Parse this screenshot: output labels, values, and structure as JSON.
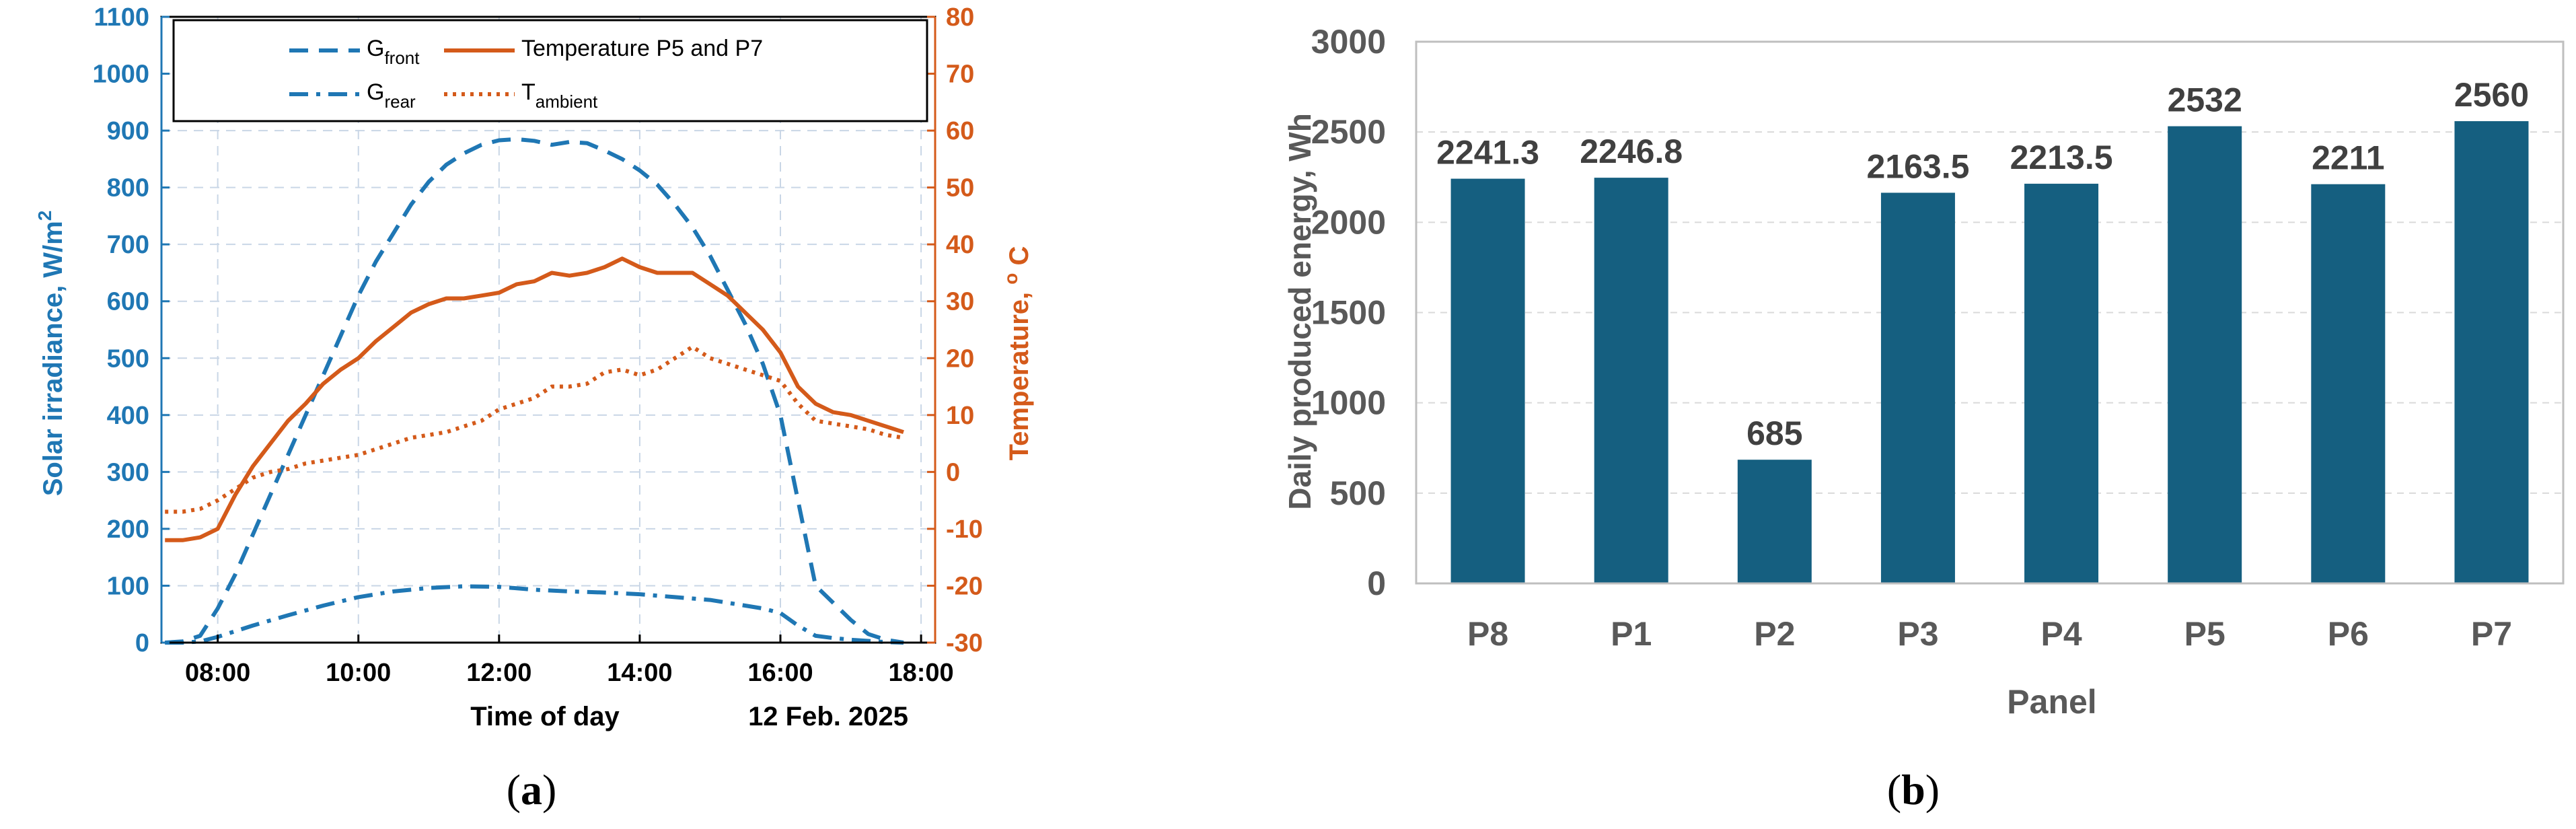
{
  "colors": {
    "blue": "#1f77b4",
    "orange": "#d45a1a",
    "bar": "#155f80",
    "grey_text": "#595959",
    "grid_dash": "#c9d6e6",
    "grid_b": "#d9d9d9"
  },
  "chart_data": [
    {
      "type": "line",
      "panel_label": "(a)",
      "xlabel": "Time of day",
      "date_label": "12 Feb. 2025",
      "ylabel_left": "Solar irradiance, W/m",
      "ylabel_left_sup": "2",
      "ylabel_right": "Temperature, ",
      "ylabel_right_sup": "o",
      "ylabel_right_unit": " C",
      "xlim": [
        7.2,
        18.2
      ],
      "x_ticks": [
        8,
        10,
        12,
        14,
        16,
        18
      ],
      "x_tick_labels": [
        "08:00",
        "10:00",
        "12:00",
        "14:00",
        "16:00",
        "18:00"
      ],
      "ylim_left": [
        0,
        1100
      ],
      "y_ticks_left": [
        0,
        100,
        200,
        300,
        400,
        500,
        600,
        700,
        800,
        900,
        1000,
        1100
      ],
      "ylim_right": [
        -30,
        80
      ],
      "y_ticks_right": [
        -30,
        -20,
        -10,
        0,
        10,
        20,
        30,
        40,
        50,
        60,
        70,
        80
      ],
      "grid": true,
      "legend_position": "top",
      "legend": [
        {
          "base": "G",
          "sub": "front",
          "style": "dashed",
          "color": "#1f77b4"
        },
        {
          "base": "Temperature P5 and P7",
          "sub": "",
          "style": "solid",
          "color": "#d45a1a"
        },
        {
          "base": "G",
          "sub": "rear",
          "style": "dashdot",
          "color": "#1f77b4"
        },
        {
          "base": "T",
          "sub": "ambient",
          "style": "dotted",
          "color": "#d45a1a"
        }
      ],
      "series": [
        {
          "axis": "left",
          "style": "dashed",
          "color": "#1f77b4",
          "x": [
            7.25,
            7.5,
            7.75,
            8.0,
            8.25,
            8.5,
            8.75,
            9.0,
            9.25,
            9.5,
            9.75,
            10.0,
            10.25,
            10.5,
            10.75,
            11.0,
            11.25,
            11.5,
            11.75,
            12.0,
            12.25,
            12.5,
            12.75,
            13.0,
            13.25,
            13.5,
            13.75,
            14.0,
            14.25,
            14.5,
            14.75,
            15.0,
            15.25,
            15.5,
            15.75,
            16.0,
            16.25,
            16.5,
            16.75,
            17.0,
            17.25,
            17.5,
            17.75
          ],
          "y": [
            0,
            2,
            12,
            60,
            120,
            190,
            260,
            330,
            400,
            470,
            540,
            610,
            670,
            720,
            770,
            810,
            840,
            860,
            875,
            883,
            885,
            882,
            875,
            880,
            878,
            865,
            850,
            830,
            805,
            770,
            730,
            680,
            620,
            560,
            490,
            400,
            250,
            100,
            70,
            40,
            15,
            5,
            0
          ]
        },
        {
          "axis": "left",
          "style": "dashdot",
          "color": "#1f77b4",
          "x": [
            7.25,
            7.5,
            7.75,
            8.0,
            8.5,
            9.0,
            9.5,
            10.0,
            10.5,
            11.0,
            11.5,
            12.0,
            12.5,
            13.0,
            13.5,
            14.0,
            14.5,
            15.0,
            15.5,
            15.75,
            16.0,
            16.25,
            16.5,
            16.75,
            17.0,
            17.25,
            17.5,
            17.75
          ],
          "y": [
            0,
            0,
            2,
            10,
            30,
            48,
            65,
            80,
            90,
            96,
            99,
            98,
            93,
            90,
            88,
            85,
            80,
            75,
            65,
            60,
            52,
            30,
            12,
            8,
            5,
            3,
            1,
            0
          ]
        },
        {
          "axis": "right",
          "style": "solid",
          "color": "#d45a1a",
          "x": [
            7.25,
            7.5,
            7.75,
            8.0,
            8.25,
            8.5,
            8.75,
            9.0,
            9.25,
            9.5,
            9.75,
            10.0,
            10.25,
            10.5,
            10.75,
            11.0,
            11.25,
            11.5,
            11.75,
            12.0,
            12.25,
            12.5,
            12.75,
            13.0,
            13.25,
            13.5,
            13.75,
            14.0,
            14.25,
            14.5,
            14.75,
            15.0,
            15.25,
            15.5,
            15.75,
            16.0,
            16.25,
            16.5,
            16.75,
            17.0,
            17.25,
            17.5,
            17.75
          ],
          "y": [
            -12,
            -12,
            -11.5,
            -10,
            -4,
            1,
            5,
            9,
            12,
            15.5,
            18,
            20,
            23,
            25.5,
            28,
            29.5,
            30.5,
            30.5,
            31,
            31.5,
            33,
            33.5,
            35,
            34.5,
            35,
            36,
            37.5,
            36,
            35,
            35,
            35,
            33,
            31,
            28,
            25,
            21,
            15,
            12,
            10.5,
            10,
            9,
            8,
            7
          ]
        },
        {
          "axis": "right",
          "style": "dotted",
          "color": "#d45a1a",
          "x": [
            7.25,
            7.5,
            7.75,
            8.0,
            8.25,
            8.5,
            8.75,
            9.0,
            9.25,
            9.5,
            9.75,
            10.0,
            10.25,
            10.5,
            10.75,
            11.0,
            11.25,
            11.5,
            11.75,
            12.0,
            12.25,
            12.5,
            12.75,
            13.0,
            13.25,
            13.5,
            13.75,
            14.0,
            14.25,
            14.5,
            14.75,
            15.0,
            15.25,
            15.5,
            15.75,
            16.0,
            16.25,
            16.5,
            16.75,
            17.0,
            17.25,
            17.5,
            17.75
          ],
          "y": [
            -7,
            -7,
            -6.5,
            -5,
            -3,
            -1,
            0,
            0.5,
            1.5,
            2,
            2.5,
            3,
            4,
            5,
            6,
            6.5,
            7,
            8,
            9,
            11,
            12,
            13,
            15,
            15,
            15.5,
            17.5,
            18,
            17,
            18,
            20,
            22,
            20,
            19,
            18,
            17,
            16,
            12,
            9,
            8.5,
            8,
            7.5,
            6.5,
            6
          ]
        }
      ]
    },
    {
      "type": "bar",
      "panel_label": "(b)",
      "xlabel": "Panel",
      "ylabel": "Daily produced energy, Wh",
      "ylim": [
        0,
        3000
      ],
      "y_ticks": [
        0,
        500,
        1000,
        1500,
        2000,
        2500,
        3000
      ],
      "categories": [
        "P8",
        "P1",
        "P2",
        "P3",
        "P4",
        "P5",
        "P6",
        "P7"
      ],
      "values": [
        2241.3,
        2246.8,
        685,
        2163.5,
        2213.5,
        2532,
        2211,
        2560
      ],
      "value_labels": [
        "2241.3",
        "2246.8",
        "685",
        "2163.5",
        "2213.5",
        "2532",
        "2211",
        "2560"
      ],
      "grid": true,
      "color": "#155f80"
    }
  ]
}
